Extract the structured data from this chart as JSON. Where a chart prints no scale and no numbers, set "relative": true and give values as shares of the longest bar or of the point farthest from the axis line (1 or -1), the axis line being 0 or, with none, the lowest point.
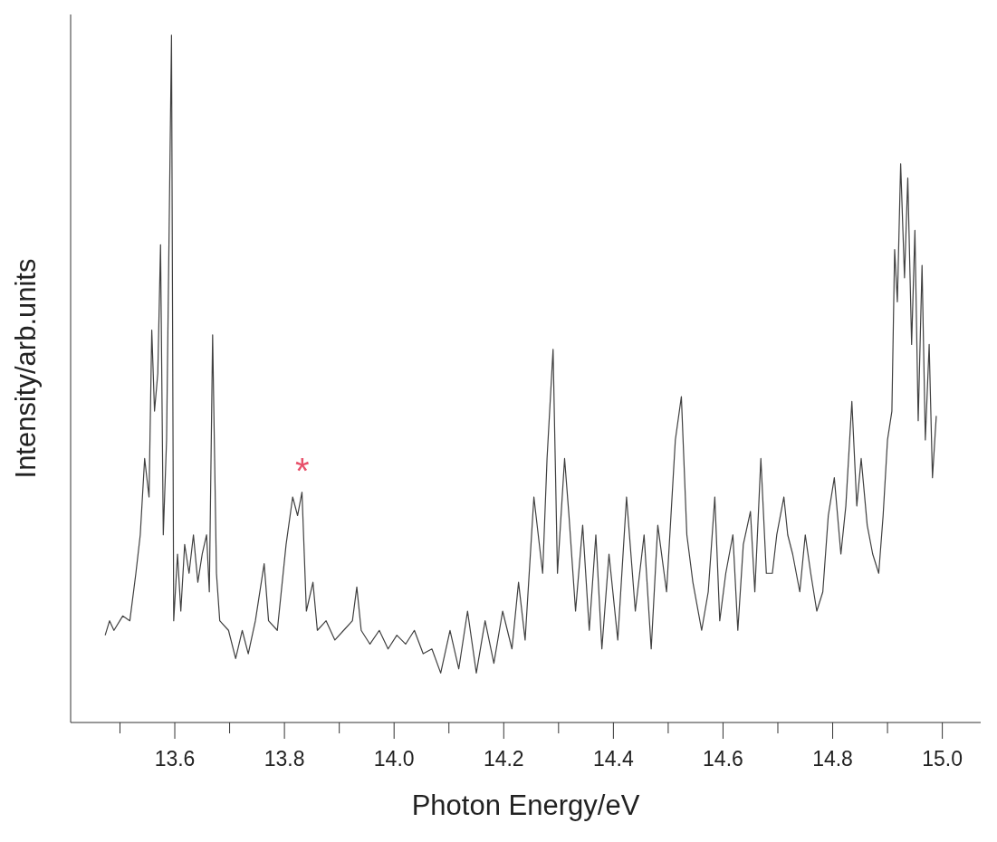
{
  "chart_data": {
    "type": "line",
    "xlabel": "Photon Energy/eV",
    "ylabel": "Intensity/arb.units",
    "relative": true,
    "marker": "none",
    "line_style": "solid",
    "xlim": [
      13.41,
      15.07
    ],
    "xticks": [
      {
        "value": 13.5,
        "label": null
      },
      13.6,
      {
        "value": 13.7,
        "label": null
      },
      13.8,
      {
        "value": 13.9,
        "label": null
      },
      {
        "value": 14.0,
        "label": "14.0"
      },
      {
        "value": 14.1,
        "label": null
      },
      14.2,
      {
        "value": 14.3,
        "label": null
      },
      14.4,
      {
        "value": 14.5,
        "label": null
      },
      14.6,
      {
        "value": 14.7,
        "label": null
      },
      14.8,
      {
        "value": 14.9,
        "label": null
      },
      {
        "value": 15.0,
        "label": "15.0"
      }
    ],
    "annotations": [
      "*"
    ],
    "series": [
      {
        "color": "#404040",
        "x": [
          13.473,
          13.481,
          13.489,
          13.505,
          13.518,
          13.529,
          13.537,
          13.545,
          13.553,
          13.558,
          13.563,
          13.569,
          13.574,
          13.579,
          13.585,
          13.594,
          13.598,
          13.605,
          13.611,
          13.618,
          13.626,
          13.634,
          13.642,
          13.65,
          13.658,
          13.663,
          13.669,
          13.676,
          13.682,
          13.698,
          13.711,
          13.723,
          13.734,
          13.747,
          13.763,
          13.771,
          13.787,
          13.803,
          13.815,
          13.824,
          13.832,
          13.84,
          13.852,
          13.86,
          13.876,
          13.892,
          13.908,
          13.924,
          13.932,
          13.94,
          13.956,
          13.973,
          13.989,
          14.005,
          14.021,
          14.037,
          14.053,
          14.069,
          14.085,
          14.102,
          14.118,
          14.134,
          14.15,
          14.166,
          14.182,
          14.198,
          14.215,
          14.227,
          14.239,
          14.255,
          14.271,
          14.279,
          14.29,
          14.298,
          14.311,
          14.319,
          14.331,
          14.344,
          14.356,
          14.368,
          14.379,
          14.392,
          14.408,
          14.424,
          14.44,
          14.456,
          14.469,
          14.481,
          14.497,
          14.513,
          14.524,
          14.534,
          14.545,
          14.561,
          14.573,
          14.585,
          14.594,
          14.605,
          14.618,
          14.627,
          14.637,
          14.65,
          14.658,
          14.669,
          14.679,
          14.69,
          14.698,
          14.711,
          14.718,
          14.727,
          14.74,
          14.75,
          14.76,
          14.771,
          14.782,
          14.792,
          14.803,
          14.815,
          14.824,
          14.835,
          14.844,
          14.852,
          14.863,
          14.873,
          14.884,
          14.892,
          14.9,
          14.908,
          14.913,
          14.918,
          14.924,
          14.931,
          14.937,
          14.944,
          14.95,
          14.956,
          14.963,
          14.969,
          14.976,
          14.982,
          14.989
        ],
        "values": [
          0.127,
          0.148,
          0.134,
          0.155,
          0.148,
          0.217,
          0.273,
          0.384,
          0.328,
          0.571,
          0.453,
          0.508,
          0.695,
          0.273,
          0.411,
          1.0,
          0.148,
          0.245,
          0.162,
          0.259,
          0.217,
          0.273,
          0.204,
          0.245,
          0.273,
          0.19,
          0.564,
          0.217,
          0.148,
          0.134,
          0.093,
          0.134,
          0.1,
          0.148,
          0.231,
          0.148,
          0.134,
          0.259,
          0.328,
          0.301,
          0.335,
          0.162,
          0.204,
          0.134,
          0.148,
          0.12,
          0.134,
          0.148,
          0.197,
          0.134,
          0.114,
          0.134,
          0.107,
          0.127,
          0.114,
          0.134,
          0.1,
          0.107,
          0.072,
          0.134,
          0.078,
          0.162,
          0.072,
          0.148,
          0.086,
          0.162,
          0.107,
          0.204,
          0.12,
          0.328,
          0.217,
          0.384,
          0.543,
          0.217,
          0.384,
          0.301,
          0.162,
          0.287,
          0.134,
          0.273,
          0.107,
          0.245,
          0.12,
          0.328,
          0.162,
          0.273,
          0.107,
          0.287,
          0.19,
          0.411,
          0.474,
          0.273,
          0.204,
          0.134,
          0.19,
          0.328,
          0.148,
          0.217,
          0.273,
          0.134,
          0.259,
          0.307,
          0.19,
          0.384,
          0.217,
          0.217,
          0.273,
          0.328,
          0.273,
          0.245,
          0.19,
          0.273,
          0.217,
          0.162,
          0.19,
          0.301,
          0.356,
          0.245,
          0.315,
          0.467,
          0.315,
          0.384,
          0.287,
          0.245,
          0.217,
          0.301,
          0.411,
          0.453,
          0.688,
          0.612,
          0.813,
          0.647,
          0.792,
          0.55,
          0.716,
          0.439,
          0.665,
          0.411,
          0.55,
          0.356,
          0.446
        ]
      }
    ]
  }
}
